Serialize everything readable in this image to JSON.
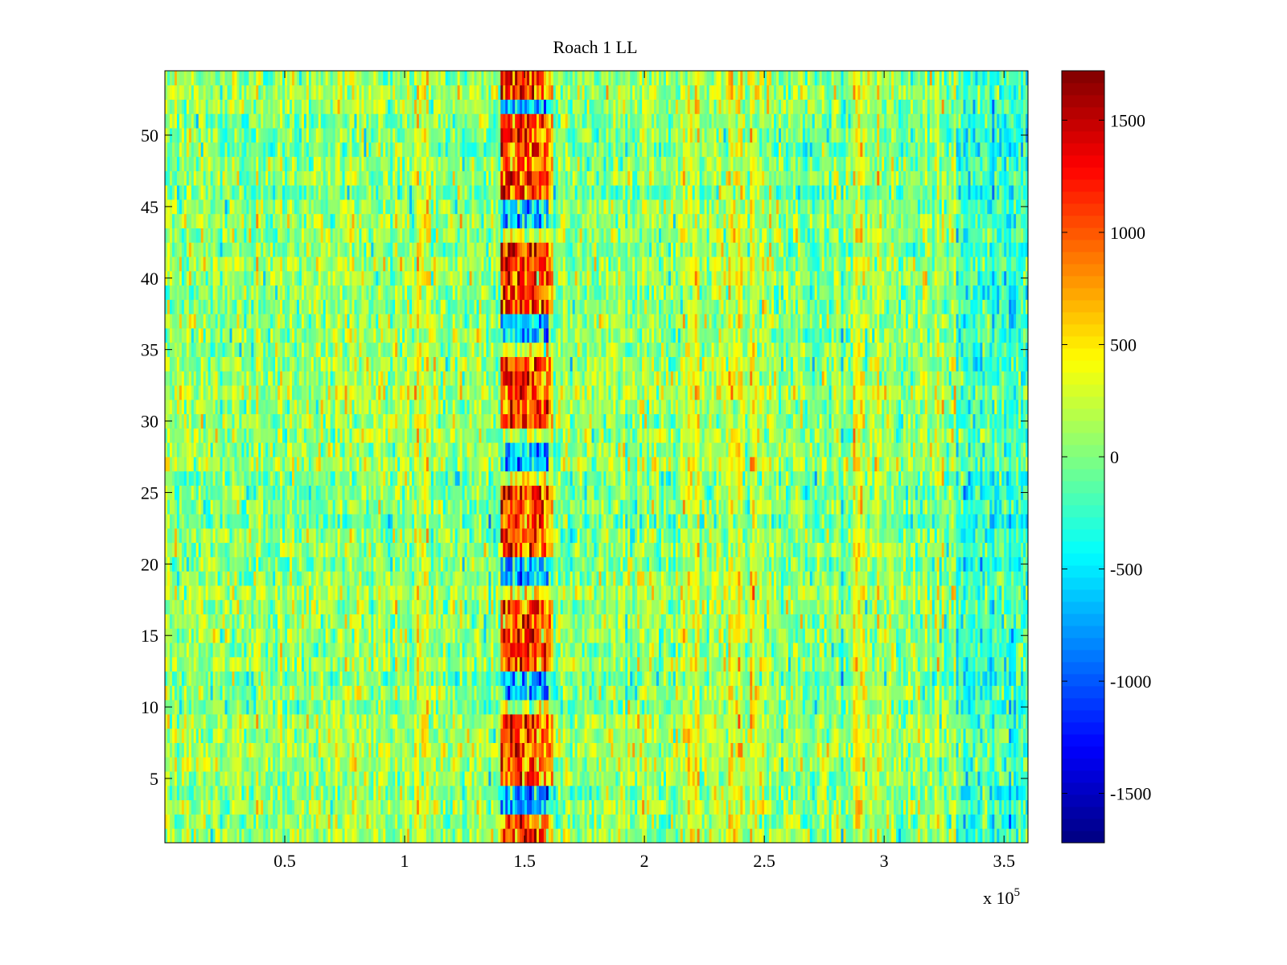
{
  "chart_data": {
    "type": "heatmap",
    "title": "Roach 1 LL",
    "xlabel": "",
    "ylabel": "",
    "x_multiplier": "x 10",
    "x_multiplier_exponent": "5",
    "xlim": [
      0,
      3.6
    ],
    "ylim": [
      0.5,
      54.5
    ],
    "x_ticks": [
      0.5,
      1,
      1.5,
      2,
      2.5,
      3,
      3.5
    ],
    "x_tick_labels": [
      "0.5",
      "1",
      "1.5",
      "2",
      "2.5",
      "3",
      "3.5"
    ],
    "y_ticks": [
      5,
      10,
      15,
      20,
      25,
      30,
      35,
      40,
      45,
      50
    ],
    "y_tick_labels": [
      "5",
      "10",
      "15",
      "20",
      "25",
      "30",
      "35",
      "40",
      "45",
      "50"
    ],
    "rows": 54,
    "colorbar": {
      "colormap": "jet",
      "clim": [
        -1720,
        1720
      ],
      "ticks": [
        1500,
        1000,
        500,
        0,
        -500,
        -1000,
        -1500
      ],
      "tick_labels": [
        "1500",
        "1000",
        "500",
        "0",
        "-500",
        "-1000",
        "-1500"
      ]
    },
    "features": {
      "background_mean": 50,
      "strong_column_x": [
        1.4,
        1.6
      ],
      "hot_rows": [
        1,
        2,
        5,
        6,
        7,
        8,
        9,
        13,
        14,
        15,
        16,
        17,
        21,
        22,
        23,
        24,
        25,
        30,
        31,
        32,
        33,
        34,
        38,
        39,
        40,
        41,
        42,
        46,
        47,
        48,
        49,
        50,
        51,
        53,
        54
      ],
      "cold_rows": [
        3,
        4,
        11,
        12,
        19,
        20,
        27,
        28,
        36,
        37,
        44,
        45,
        52
      ],
      "warm_bands_x": [
        1.08,
        2.2,
        2.38,
        2.47,
        2.9
      ],
      "cool_region_x": [
        3.3,
        3.6
      ]
    }
  }
}
